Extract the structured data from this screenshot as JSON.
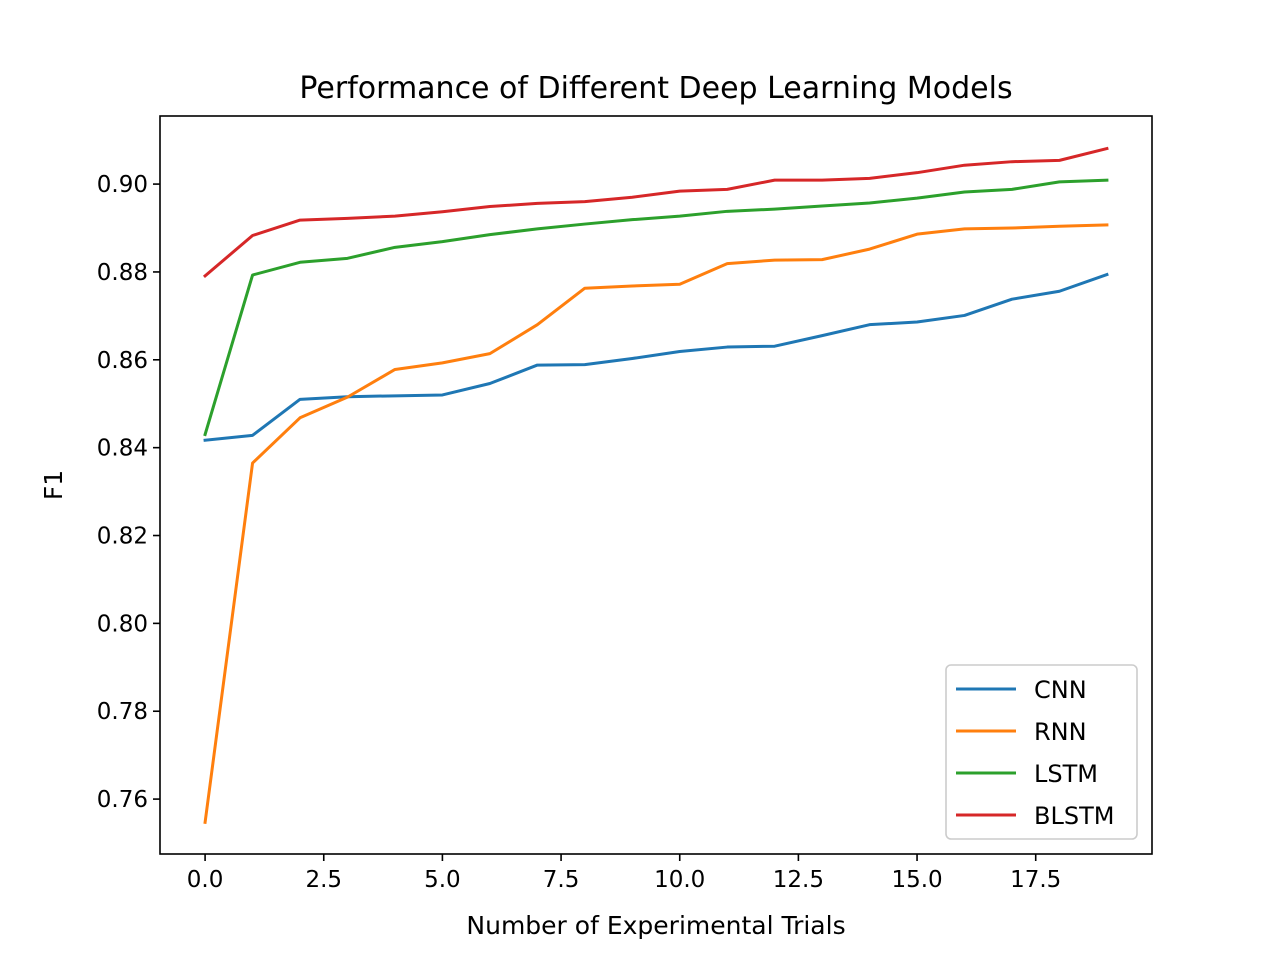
{
  "chart_data": {
    "type": "line",
    "title": "Performance of Different Deep Learning Models",
    "xlabel": "Number of Experimental Trials",
    "ylabel": "F1",
    "xlim": [
      -0.95,
      19.95
    ],
    "ylim": [
      0.7475,
      0.9155
    ],
    "xticks": [
      0.0,
      2.5,
      5.0,
      7.5,
      10.0,
      12.5,
      15.0,
      17.5
    ],
    "xtick_labels": [
      "0.0",
      "2.5",
      "5.0",
      "7.5",
      "10.0",
      "12.5",
      "15.0",
      "17.5"
    ],
    "yticks": [
      0.76,
      0.78,
      0.8,
      0.82,
      0.84,
      0.86,
      0.88,
      0.9
    ],
    "ytick_labels": [
      "0.76",
      "0.78",
      "0.80",
      "0.82",
      "0.84",
      "0.86",
      "0.88",
      "0.90"
    ],
    "grid": false,
    "legend_position": "lower-right",
    "x": [
      0,
      1,
      2,
      3,
      4,
      5,
      6,
      7,
      8,
      9,
      10,
      11,
      12,
      13,
      14,
      15,
      16,
      17,
      18,
      19
    ],
    "series": [
      {
        "name": "CNN",
        "color": "#1f77b4",
        "values": [
          0.8417,
          0.8428,
          0.851,
          0.8516,
          0.8518,
          0.852,
          0.8546,
          0.8588,
          0.8589,
          0.8603,
          0.8619,
          0.8629,
          0.8631,
          0.8655,
          0.868,
          0.8686,
          0.8701,
          0.8738,
          0.8756,
          0.8794
        ]
      },
      {
        "name": "RNN",
        "color": "#ff7f0e",
        "values": [
          0.7547,
          0.8365,
          0.8468,
          0.8515,
          0.8578,
          0.8593,
          0.8614,
          0.868,
          0.8763,
          0.8768,
          0.8772,
          0.8819,
          0.8827,
          0.8828,
          0.8852,
          0.8886,
          0.8898,
          0.89,
          0.8904,
          0.8907
        ]
      },
      {
        "name": "LSTM",
        "color": "#2ca02c",
        "values": [
          0.843,
          0.8793,
          0.8822,
          0.8831,
          0.8856,
          0.8869,
          0.8885,
          0.8898,
          0.8909,
          0.8919,
          0.8927,
          0.8938,
          0.8943,
          0.895,
          0.8957,
          0.8968,
          0.8982,
          0.8988,
          0.9005,
          0.9009
        ]
      },
      {
        "name": "BLSTM",
        "color": "#d62728",
        "values": [
          0.8791,
          0.8883,
          0.8918,
          0.8922,
          0.8927,
          0.8937,
          0.8949,
          0.8956,
          0.896,
          0.897,
          0.8984,
          0.8988,
          0.9009,
          0.9009,
          0.9013,
          0.9026,
          0.9043,
          0.9051,
          0.9054,
          0.9081
        ]
      }
    ]
  }
}
